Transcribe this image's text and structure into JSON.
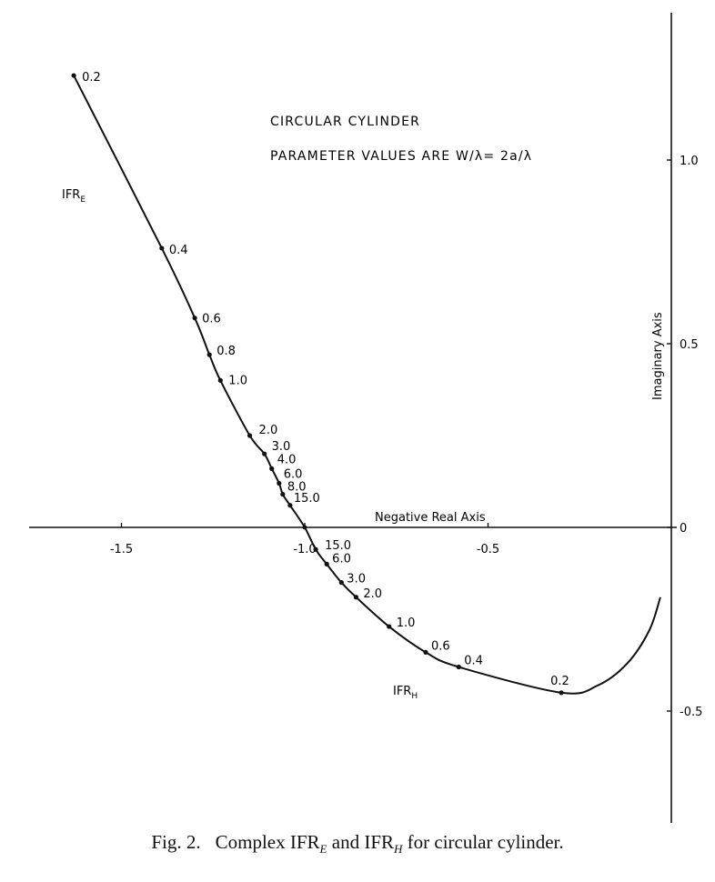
{
  "chart_data": {
    "type": "line",
    "title": "CIRCULAR CYLINDER",
    "subtitle": "PARAMETER VALUES ARE W/λ= 2a/λ",
    "xlabel": "Negative Real Axis",
    "ylabel": "Imaginary Axis",
    "xlim": [
      -1.75,
      0.05
    ],
    "ylim": [
      -0.8,
      1.38
    ],
    "x_ticks": [
      -1.5,
      -1.0,
      -0.5
    ],
    "x_tick_labels": [
      "-1.5",
      "-1.0",
      "-0.5"
    ],
    "y_ticks": [
      1.0,
      0.5,
      0,
      -0.5
    ],
    "y_tick_labels": [
      "1.0",
      "0.5",
      "0",
      "-0.5"
    ],
    "grid": false,
    "series": [
      {
        "name": "IFR",
        "subscript": "E",
        "points": [
          {
            "label": "0.2",
            "x": -1.63,
            "y": 1.23
          },
          {
            "label": "0.4",
            "x": -1.39,
            "y": 0.76
          },
          {
            "label": "0.6",
            "x": -1.3,
            "y": 0.57
          },
          {
            "label": "0.8",
            "x": -1.26,
            "y": 0.47
          },
          {
            "label": "1.0",
            "x": -1.23,
            "y": 0.4
          },
          {
            "label": "2.0",
            "x": -1.15,
            "y": 0.25
          },
          {
            "label": "3.0",
            "x": -1.11,
            "y": 0.2
          },
          {
            "label": "4.0",
            "x": -1.09,
            "y": 0.16
          },
          {
            "label": "6.0",
            "x": -1.07,
            "y": 0.12
          },
          {
            "label": "8.0",
            "x": -1.06,
            "y": 0.09
          },
          {
            "label": "15.0",
            "x": -1.04,
            "y": 0.06
          }
        ]
      },
      {
        "name": "IFR",
        "subscript": "H",
        "points": [
          {
            "label": "15.0",
            "x": -0.97,
            "y": -0.06
          },
          {
            "label": "6.0",
            "x": -0.94,
            "y": -0.1
          },
          {
            "label": "3.0",
            "x": -0.9,
            "y": -0.15
          },
          {
            "label": "2.0",
            "x": -0.86,
            "y": -0.19
          },
          {
            "label": "1.0",
            "x": -0.77,
            "y": -0.27
          },
          {
            "label": "0.6",
            "x": -0.67,
            "y": -0.34
          },
          {
            "label": "0.4",
            "x": -0.58,
            "y": -0.38
          },
          {
            "label": "0.2",
            "x": -0.3,
            "y": -0.45
          }
        ],
        "tail": [
          {
            "x": -0.2,
            "y": -0.43
          },
          {
            "x": -0.12,
            "y": -0.37
          },
          {
            "x": -0.06,
            "y": -0.28
          },
          {
            "x": -0.03,
            "y": -0.19
          }
        ]
      }
    ],
    "origin_point": {
      "x": -1.0,
      "y": 0.0
    }
  },
  "caption": {
    "prefix": "Fig. 2.",
    "text_a": "Complex IFR",
    "sub_a": "E",
    "text_b": " and IFR",
    "sub_b": "H",
    "text_c": " for circular cylinder."
  }
}
